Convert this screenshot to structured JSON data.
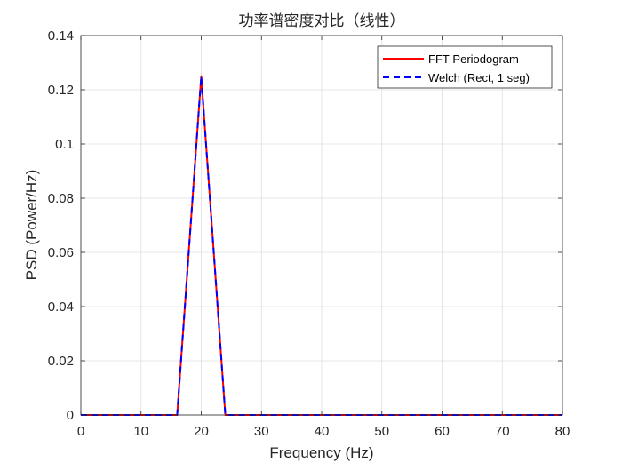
{
  "chart_data": {
    "type": "line",
    "title": "功率谱密度对比（线性）",
    "xlabel": "Frequency (Hz)",
    "ylabel": "PSD (Power/Hz)",
    "xlim": [
      0,
      80
    ],
    "ylim": [
      0,
      0.14
    ],
    "xticks": [
      0,
      10,
      20,
      30,
      40,
      50,
      60,
      70,
      80
    ],
    "yticks": [
      0,
      0.02,
      0.04,
      0.06,
      0.08,
      0.1,
      0.12,
      0.14
    ],
    "xtick_labels": [
      "0",
      "10",
      "20",
      "30",
      "40",
      "50",
      "60",
      "70",
      "80"
    ],
    "ytick_labels": [
      "0",
      "0.02",
      "0.04",
      "0.06",
      "0.08",
      "0.1",
      "0.12",
      "0.14"
    ],
    "grid": true,
    "legend_position": "top-right",
    "series": [
      {
        "name": "FFT-Periodogram",
        "color": "#ff0000",
        "line_style": "solid",
        "x": [
          0,
          16,
          20,
          24,
          80
        ],
        "y": [
          0,
          0,
          0.125,
          0,
          0
        ]
      },
      {
        "name": "Welch (Rect, 1 seg)",
        "color": "#0000ff",
        "line_style": "dashed",
        "x": [
          0,
          16,
          20,
          24,
          80
        ],
        "y": [
          0,
          0,
          0.125,
          0,
          0
        ]
      }
    ]
  }
}
